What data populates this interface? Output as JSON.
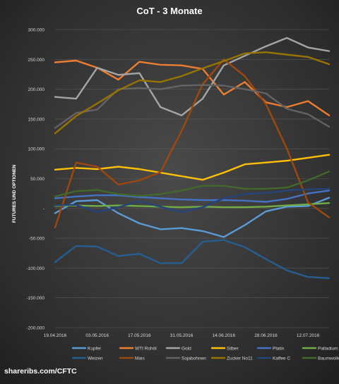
{
  "chart_data": {
    "type": "line",
    "title": "CoT - 3 Monate",
    "ylabel": "FUTURES UND OPTIONEN",
    "xlabel": "",
    "ylim": [
      -200000,
      300000
    ],
    "yticks": [
      "300.000",
      "250.000",
      "200.000",
      "150.000",
      "100.000",
      "50.000",
      "-",
      "-50.000",
      "-100.000",
      "-150.000",
      "-200.000"
    ],
    "x": [
      "19.04.2016",
      "26.04.2016",
      "03.05.2016",
      "10.05.2016",
      "17.05.2016",
      "24.05.2016",
      "31.05.2016",
      "07.06.2016",
      "14.06.2016",
      "21.06.2016",
      "28.06.2016",
      "05.07.2016",
      "12.07.2016",
      "19.07.2016"
    ],
    "xtick_labels": [
      "19.04.2016",
      "03.05.2016",
      "17.05.2016",
      "31.05.2016",
      "14.06.2016",
      "28.06.2016",
      "12.07.2016"
    ],
    "grid": true,
    "legend_position": "bottom",
    "series": [
      {
        "name": "Kupfer",
        "color": "#5b9bd5",
        "values": [
          -8000,
          12000,
          14000,
          -8000,
          -25000,
          -35000,
          -33000,
          -38000,
          -48000,
          -28000,
          -5000,
          3000,
          4000,
          18000
        ]
      },
      {
        "name": "WTI Rohöl",
        "color": "#ed7d31",
        "values": [
          245000,
          248000,
          236000,
          216000,
          246000,
          241000,
          240000,
          234000,
          191000,
          212000,
          178000,
          170000,
          180000,
          156000
        ]
      },
      {
        "name": "Gold",
        "color": "#a5a5a5",
        "values": [
          187000,
          184000,
          236000,
          224000,
          227000,
          170000,
          156000,
          184000,
          240000,
          256000,
          272000,
          286000,
          270000,
          264000
        ]
      },
      {
        "name": "Silber",
        "color": "#ffc000",
        "values": [
          65000,
          68000,
          66000,
          70000,
          66000,
          60000,
          54000,
          48000,
          60000,
          74000,
          77000,
          80000,
          85000,
          90000
        ]
      },
      {
        "name": "Platin",
        "color": "#4472c4",
        "values": [
          17000,
          20000,
          22000,
          22000,
          19000,
          17000,
          15000,
          14000,
          14000,
          13000,
          11000,
          16000,
          25000,
          30000
        ]
      },
      {
        "name": "Palladium",
        "color": "#70ad47",
        "values": [
          4000,
          5000,
          4000,
          5000,
          4000,
          3000,
          2000,
          3000,
          2000,
          2000,
          3000,
          5000,
          7000,
          9000
        ]
      },
      {
        "name": "Weizen",
        "color": "#255e91",
        "values": [
          -90000,
          -63000,
          -64000,
          -80000,
          -76000,
          -92000,
          -92000,
          -56000,
          -53000,
          -65000,
          -85000,
          -104000,
          -115000,
          -117000
        ]
      },
      {
        "name": "Mais",
        "color": "#9e480e",
        "values": [
          -32000,
          77000,
          70000,
          40000,
          47000,
          61000,
          130000,
          208000,
          250000,
          222000,
          175000,
          100000,
          10000,
          -15000
        ]
      },
      {
        "name": "Sojabohnen",
        "color": "#636363",
        "values": [
          135000,
          160000,
          166000,
          200000,
          202000,
          200000,
          206000,
          207000,
          206000,
          200000,
          193000,
          167000,
          158000,
          137000
        ]
      },
      {
        "name": "Zucker No11",
        "color": "#997300",
        "values": [
          126000,
          155000,
          176000,
          198000,
          215000,
          212000,
          222000,
          235000,
          247000,
          260000,
          262000,
          258000,
          254000,
          242000
        ]
      },
      {
        "name": "Kaffee C",
        "color": "#264478",
        "values": [
          5000,
          6000,
          -6000,
          2000,
          12000,
          3000,
          -6000,
          2000,
          17000,
          24000,
          26000,
          30000,
          32000,
          33000
        ]
      },
      {
        "name": "Baumwolle",
        "color": "#43682b",
        "values": [
          20000,
          29000,
          31000,
          24000,
          21000,
          24000,
          30000,
          38000,
          38000,
          33000,
          33000,
          35000,
          47000,
          62000
        ]
      }
    ]
  },
  "footer": "shareribs.com/CFTC"
}
